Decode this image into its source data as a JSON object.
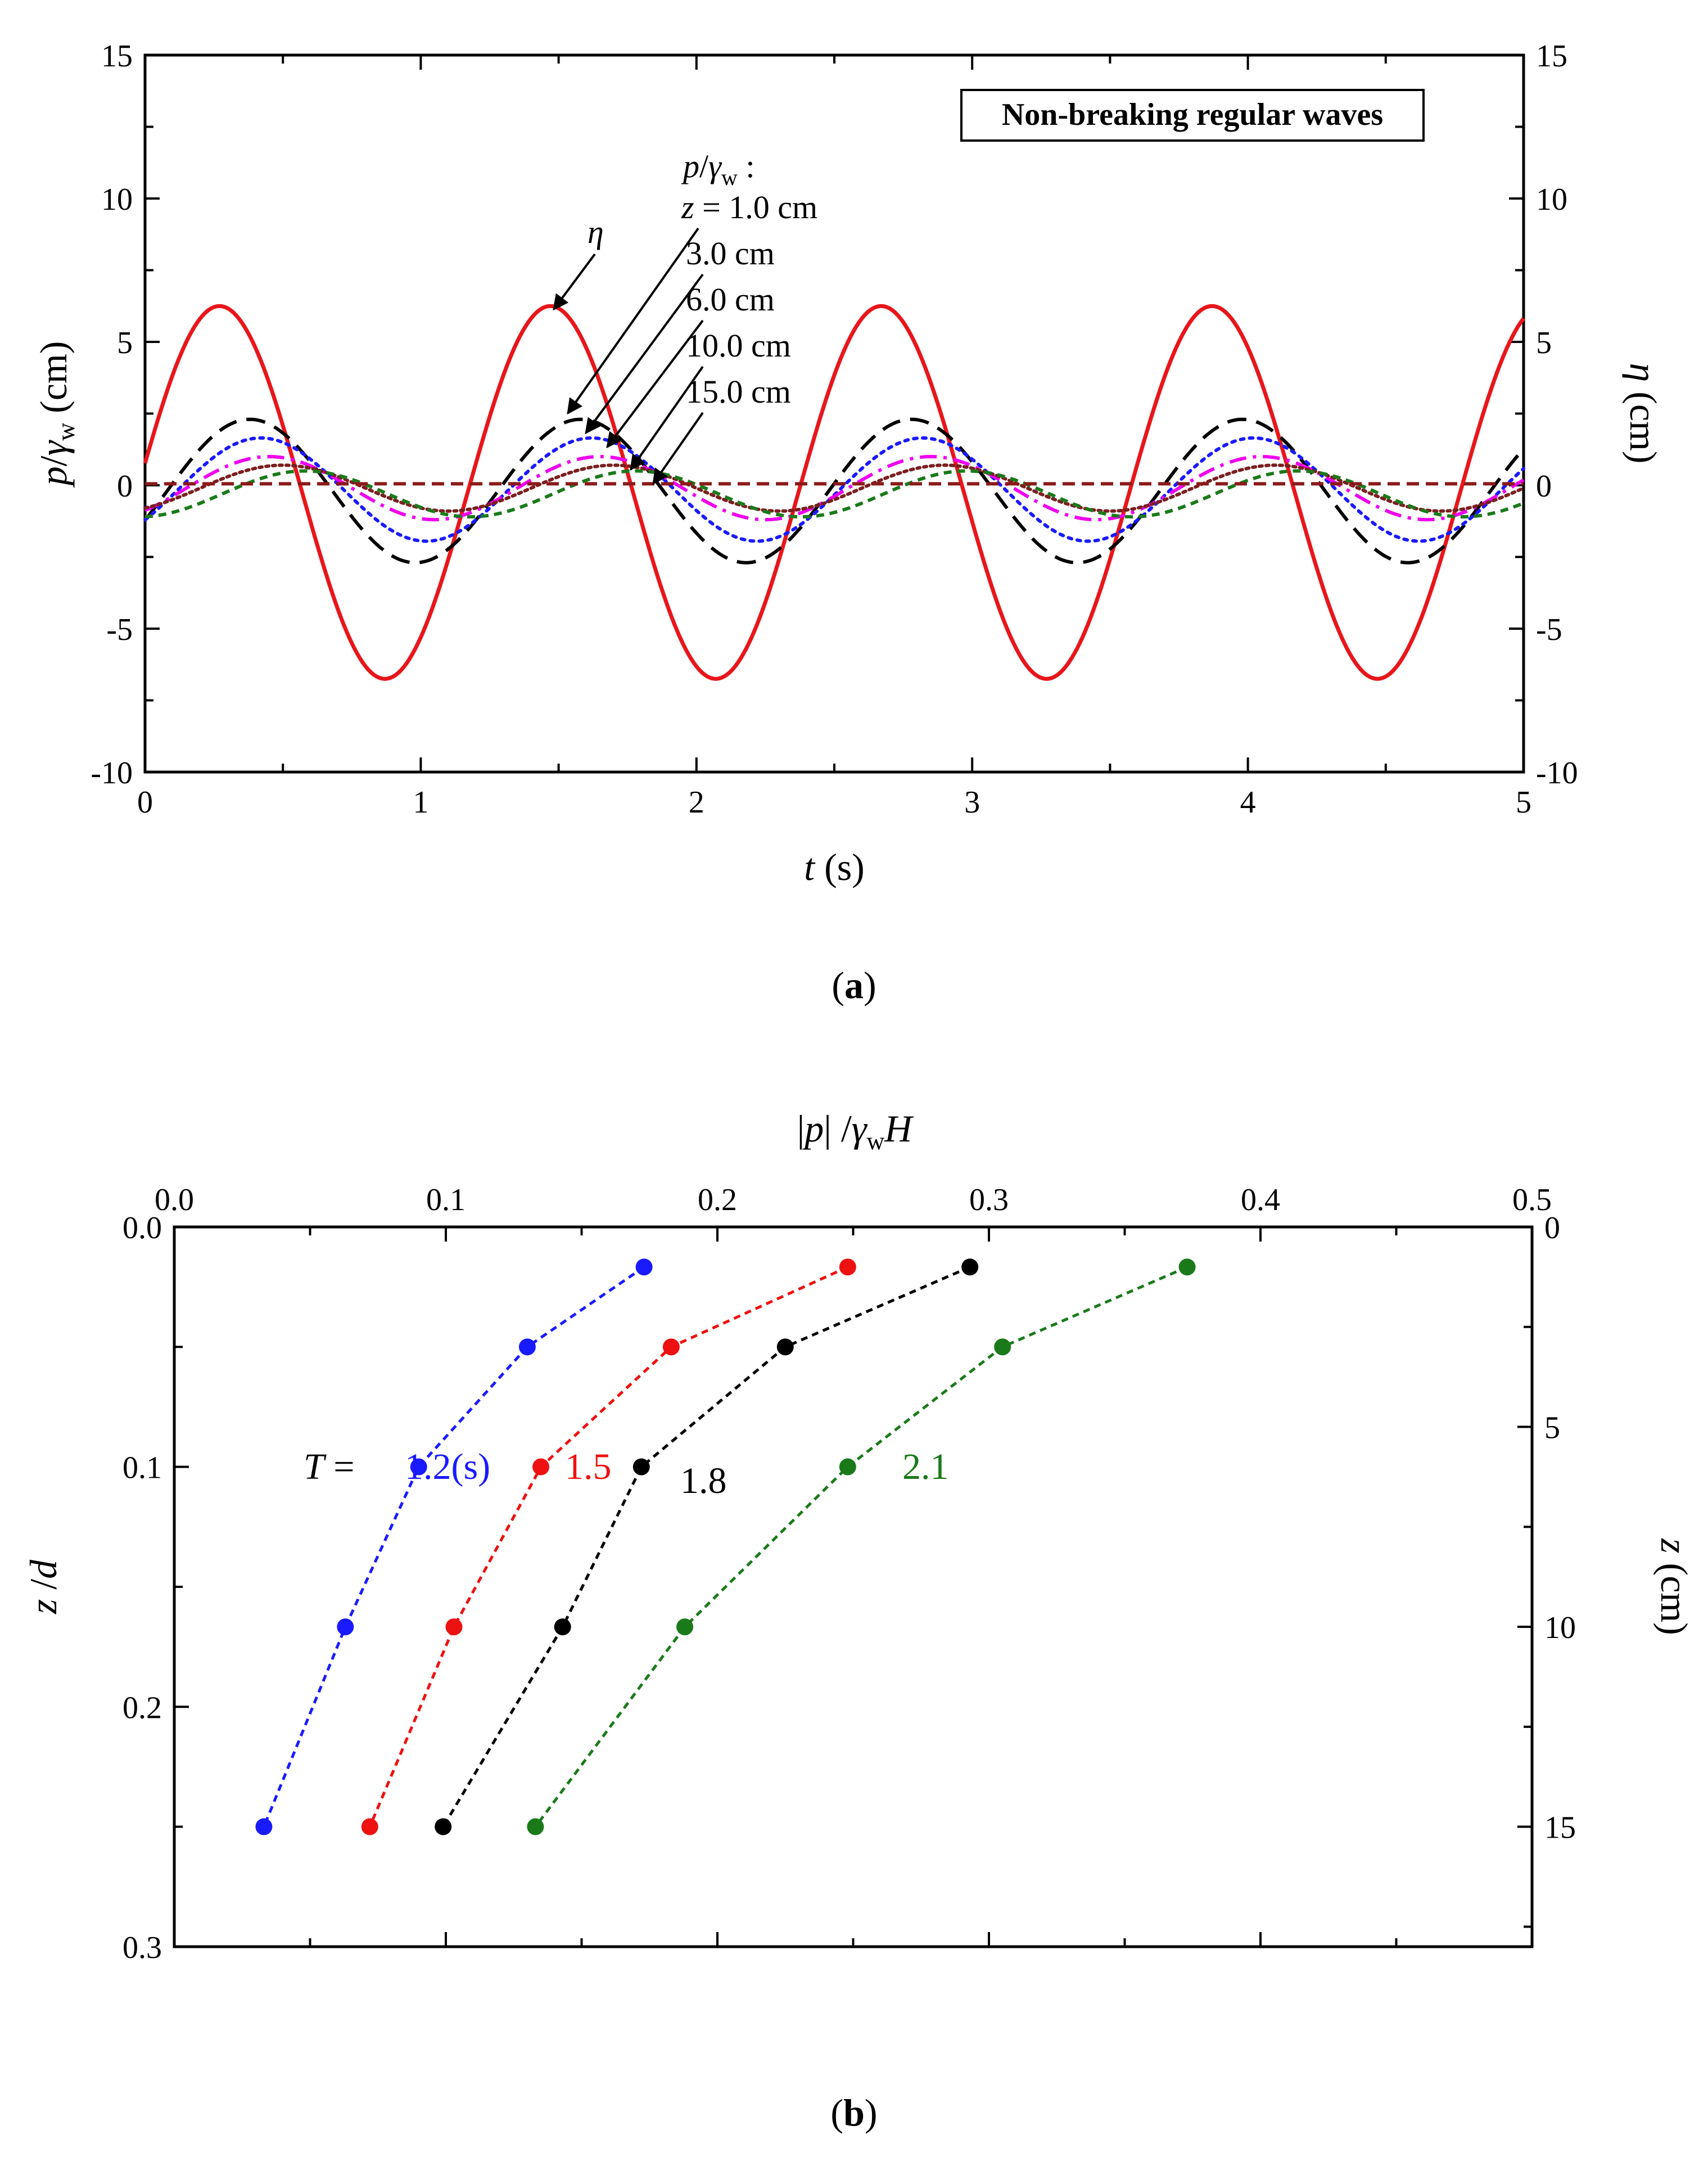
{
  "figure": {
    "panel_a_label": "(a)",
    "panel_b_label": "(b)"
  },
  "chart_data": [
    {
      "type": "line",
      "title": "Non-breaking regular waves",
      "xlabel": "t (s)",
      "ylabel": "p/γw (cm)",
      "y2label": "η (cm)",
      "xlim": [
        0,
        5
      ],
      "ylim": [
        -10,
        15
      ],
      "x_ticks": [
        "0",
        "1",
        "2",
        "3",
        "4",
        "5"
      ],
      "y_ticks": [
        "-10",
        "-5",
        "0",
        "5",
        "10",
        "15"
      ],
      "y2_ticks": [
        "-10",
        "-5",
        "0",
        "5",
        "10",
        "15"
      ],
      "legend_header": "p/γw :",
      "series": [
        {
          "name": "η",
          "label": "η",
          "color": "#e8161b",
          "dash": "solid",
          "mean": -0.25,
          "amp": 6.5,
          "phase_s": 0.27
        },
        {
          "name": "z = 1.0 cm",
          "label": "z = 1.0 cm",
          "color": "#000000",
          "dash": "longdash",
          "mean": -0.2,
          "amp": 2.5,
          "phase_s": 0.38
        },
        {
          "name": "3.0 cm",
          "label": "3.0 cm",
          "color": "#1a1aff",
          "dash": "dot",
          "mean": -0.15,
          "amp": 1.8,
          "phase_s": 0.42
        },
        {
          "name": "6.0 cm",
          "label": "6.0 cm",
          "color": "#ee00ee",
          "dash": "dashdot",
          "mean": -0.1,
          "amp": 1.1,
          "phase_s": 0.45
        },
        {
          "name": "10.0 cm",
          "label": "10.0 cm",
          "color": "#7a1f1f",
          "dash": "shortdot",
          "mean": -0.1,
          "amp": 0.8,
          "phase_s": 0.5
        },
        {
          "name": "15.0 cm",
          "label": "15.0 cm",
          "color": "#1a7a1a",
          "dash": "shortdash",
          "mean": -0.3,
          "amp": 0.8,
          "phase_s": 0.58
        },
        {
          "name": "zero line",
          "label": "",
          "color": "#8b1a1a",
          "dash": "dash",
          "mean": 0.05,
          "amp": 0.0,
          "phase_s": 0.0
        }
      ],
      "period_s": 1.2
    },
    {
      "type": "line",
      "title": "",
      "xlabel": "|p| /γwH",
      "ylabel": "z /d",
      "y2label": "z (cm)",
      "xlim": [
        0,
        0.5
      ],
      "ylim": [
        0,
        0.3
      ],
      "y_inverted": true,
      "y2lim": [
        0,
        18
      ],
      "x_ticks": [
        "0.0",
        "0.1",
        "0.2",
        "0.3",
        "0.4",
        "0.5"
      ],
      "y_ticks": [
        "0.0",
        "0.1",
        "0.2",
        "0.3"
      ],
      "y2_ticks": [
        "0",
        "5",
        "10",
        "15"
      ],
      "y": [
        0.0167,
        0.05,
        0.1,
        0.1667,
        0.25
      ],
      "series": [
        {
          "name": "T = 1.2(s)",
          "label": "1.2(s)",
          "color": "#1a1aff",
          "values": [
            0.173,
            0.13,
            0.09,
            0.063,
            0.033
          ]
        },
        {
          "name": "T = 1.5",
          "label": "1.5",
          "color": "#ee1111",
          "values": [
            0.248,
            0.183,
            0.135,
            0.103,
            0.072
          ]
        },
        {
          "name": "T = 1.8",
          "label": "1.8",
          "color": "#000000",
          "values": [
            0.293,
            0.225,
            0.172,
            0.143,
            0.099
          ]
        },
        {
          "name": "T = 2.1",
          "label": "2.1",
          "color": "#1a7a1a",
          "values": [
            0.373,
            0.305,
            0.248,
            0.188,
            0.133
          ]
        }
      ],
      "T_prefix": "T ="
    }
  ]
}
